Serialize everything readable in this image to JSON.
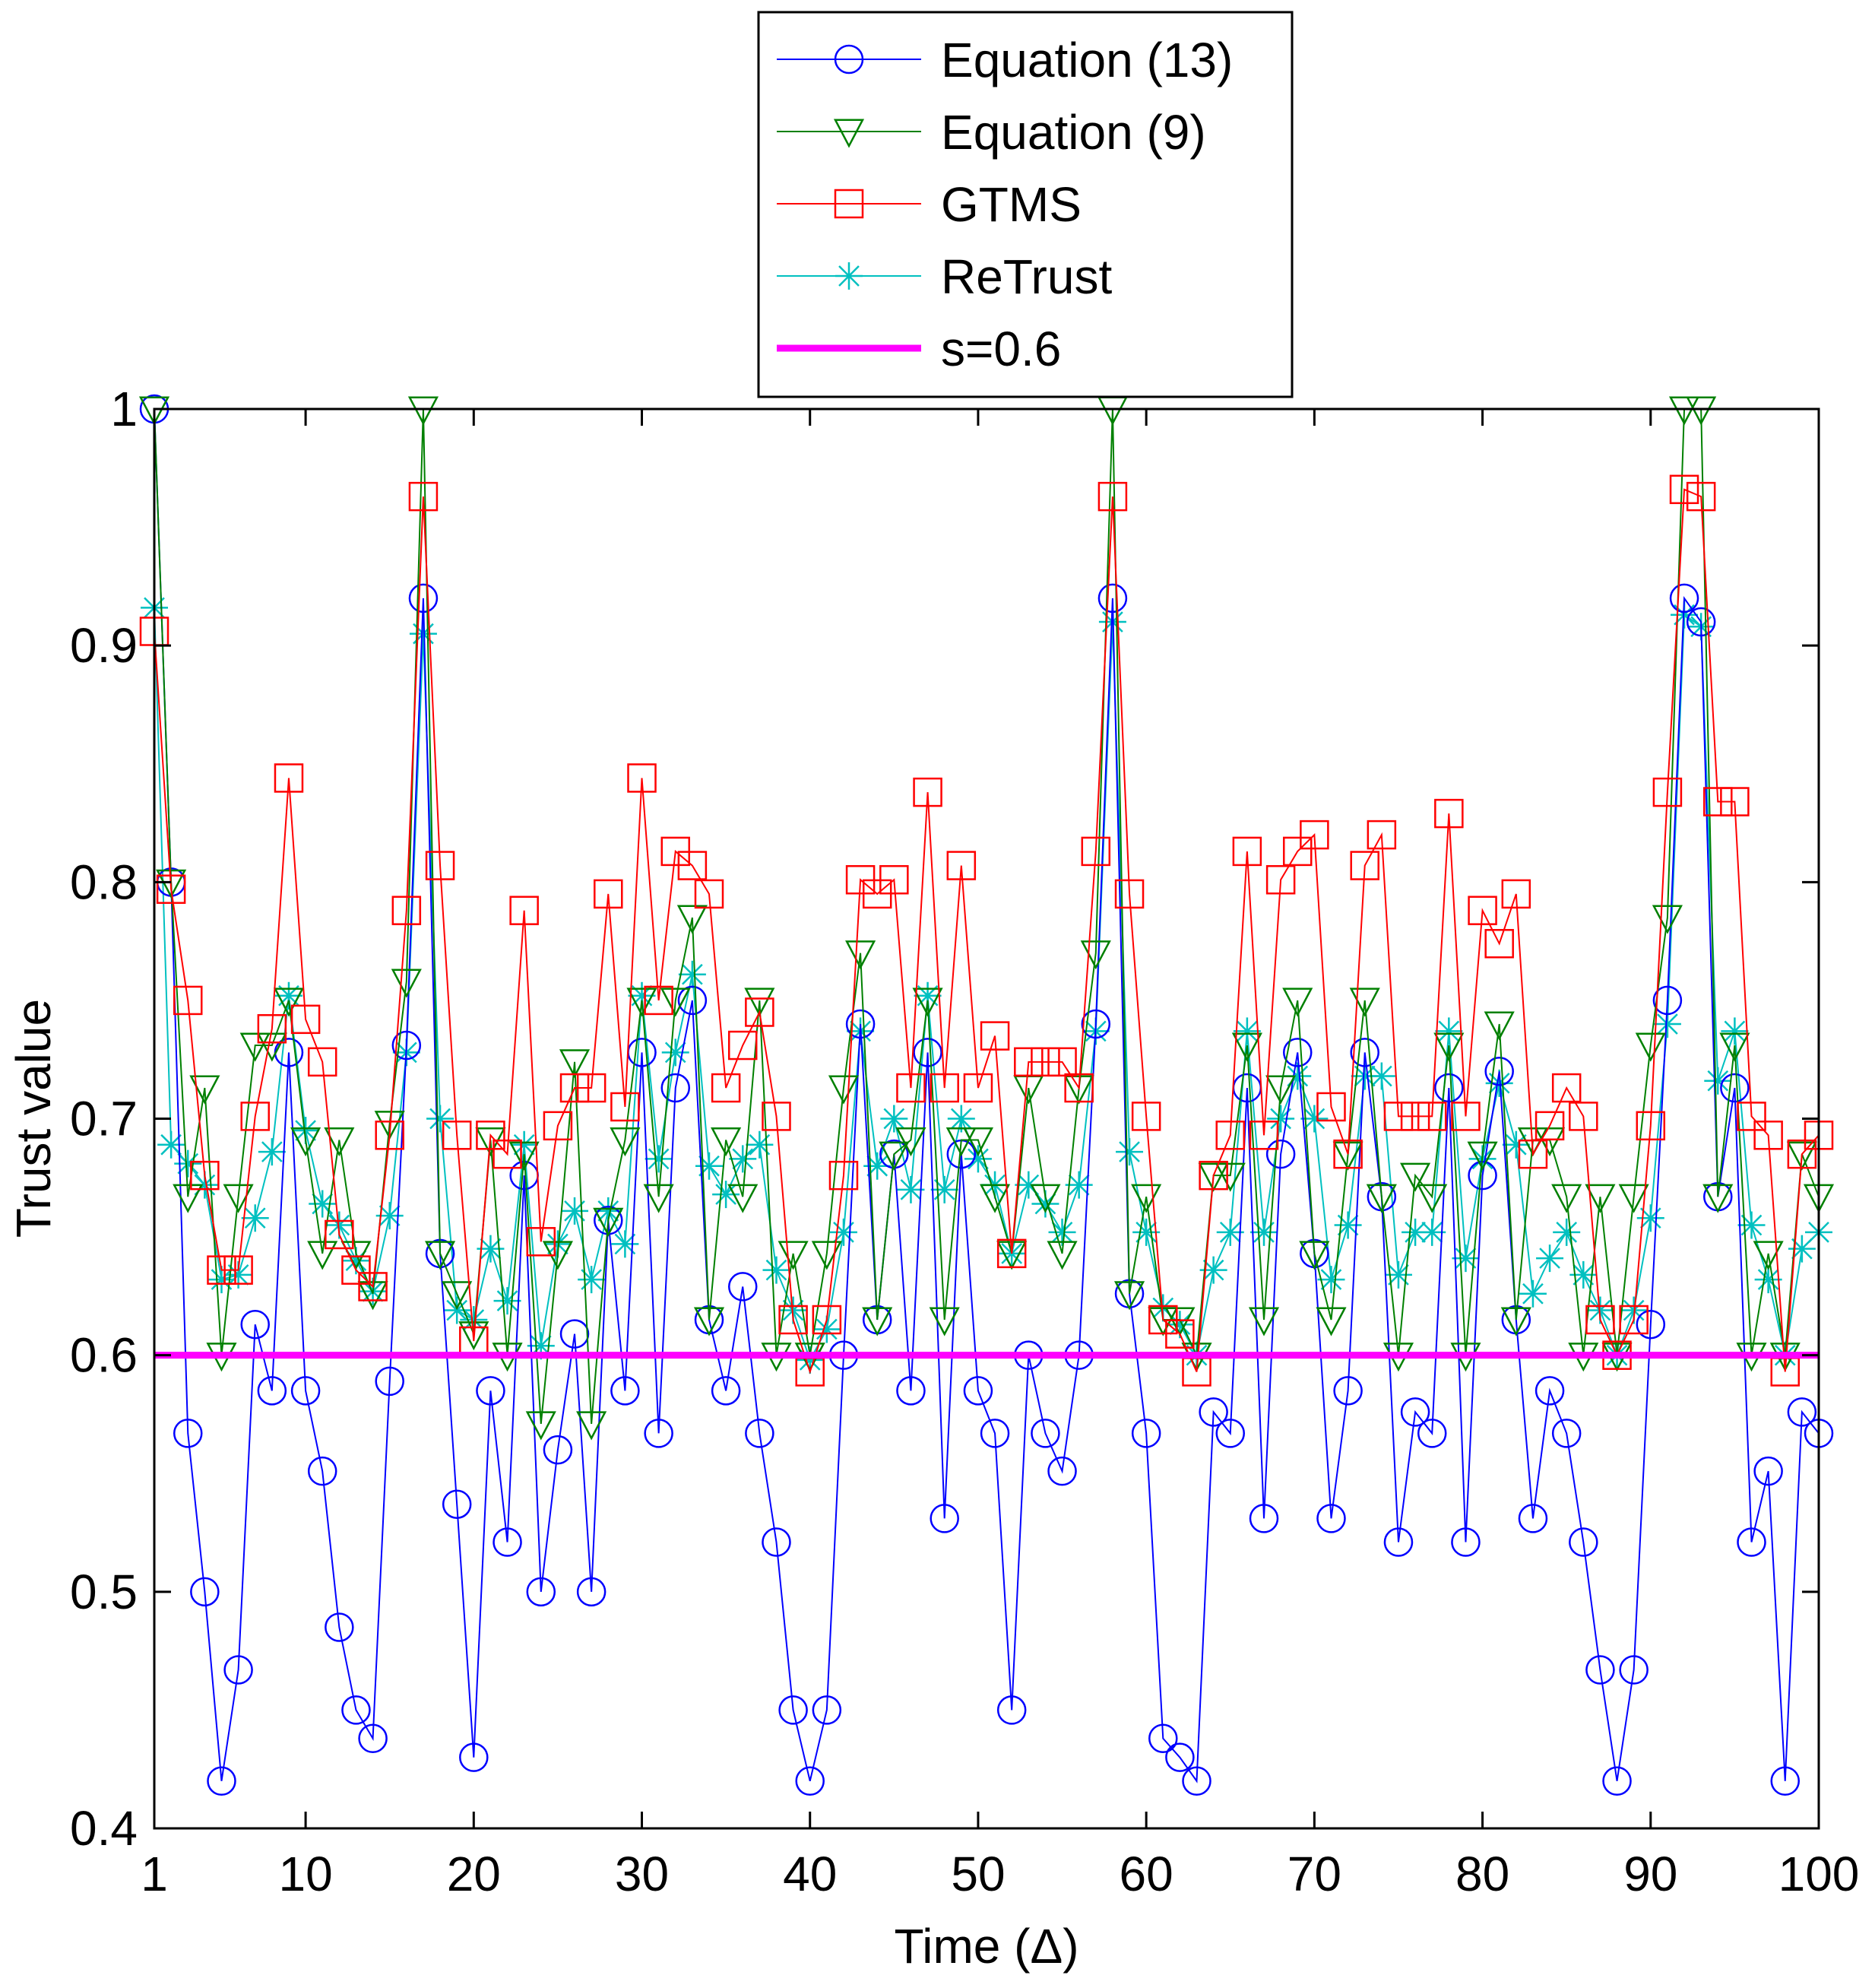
{
  "chart_data": {
    "type": "line",
    "xlabel": "Time (Δ)",
    "ylabel": "Trust value",
    "xlim": [
      1,
      100
    ],
    "ylim": [
      0.4,
      1.0
    ],
    "x_ticks": [
      1,
      10,
      20,
      30,
      40,
      50,
      60,
      70,
      80,
      90,
      100
    ],
    "x_tick_labels": [
      "1",
      "10",
      "20",
      "30",
      "40",
      "50",
      "60",
      "70",
      "80",
      "90",
      "100"
    ],
    "y_ticks": [
      0.4,
      0.5,
      0.6,
      0.7,
      0.8,
      0.9,
      1.0
    ],
    "y_tick_labels": [
      "0.4",
      "0.5",
      "0.6",
      "0.7",
      "0.8",
      "0.9",
      "1"
    ],
    "grid": false,
    "legend_position": "top-center, outside above plot",
    "series": [
      {
        "name": "Equation (13)",
        "color": "#0000ff",
        "marker": "circle",
        "values": [
          1.0,
          0.8,
          0.567,
          0.5,
          0.42,
          0.467,
          0.613,
          0.585,
          0.728,
          0.585,
          0.551,
          0.485,
          0.45,
          0.438,
          0.589,
          0.731,
          0.92,
          0.643,
          0.537,
          0.43,
          0.585,
          0.521,
          0.676,
          0.5,
          0.56,
          0.609,
          0.5,
          0.657,
          0.585,
          0.728,
          0.567,
          0.713,
          0.75,
          0.615,
          0.585,
          0.629,
          0.567,
          0.521,
          0.45,
          0.42,
          0.45,
          0.6,
          0.74,
          0.615,
          0.685,
          0.585,
          0.728,
          0.531,
          0.685,
          0.585,
          0.567,
          0.45,
          0.6,
          0.567,
          0.551,
          0.6,
          0.74,
          0.92,
          0.626,
          0.567,
          0.438,
          0.43,
          0.42,
          0.576,
          0.567,
          0.713,
          0.531,
          0.685,
          0.728,
          0.643,
          0.531,
          0.585,
          0.728,
          0.667,
          0.521,
          0.576,
          0.567,
          0.713,
          0.521,
          0.676,
          0.72,
          0.615,
          0.531,
          0.585,
          0.567,
          0.521,
          0.467,
          0.42,
          0.467,
          0.613,
          0.75,
          0.92,
          0.91,
          0.667,
          0.713,
          0.521,
          0.551,
          0.42,
          0.576,
          0.567
        ]
      },
      {
        "name": "Equation (9)",
        "color": "#008000",
        "marker": "triangle-down",
        "values": [
          1.0,
          0.8,
          0.667,
          0.713,
          0.6,
          0.667,
          0.731,
          0.731,
          0.75,
          0.691,
          0.643,
          0.691,
          0.643,
          0.626,
          0.698,
          0.758,
          1.0,
          0.643,
          0.626,
          0.609,
          0.691,
          0.6,
          0.685,
          0.571,
          0.643,
          0.724,
          0.571,
          0.657,
          0.691,
          0.75,
          0.667,
          0.75,
          0.785,
          0.615,
          0.691,
          0.667,
          0.75,
          0.6,
          0.643,
          0.6,
          0.643,
          0.713,
          0.77,
          0.615,
          0.685,
          0.691,
          0.75,
          0.615,
          0.691,
          0.691,
          0.667,
          0.643,
          0.713,
          0.667,
          0.643,
          0.713,
          0.77,
          1.0,
          0.626,
          0.667,
          0.615,
          0.615,
          0.6,
          0.676,
          0.676,
          0.731,
          0.615,
          0.713,
          0.75,
          0.643,
          0.615,
          0.685,
          0.75,
          0.667,
          0.6,
          0.676,
          0.667,
          0.731,
          0.6,
          0.685,
          0.74,
          0.615,
          0.691,
          0.691,
          0.667,
          0.6,
          0.667,
          0.6,
          0.667,
          0.731,
          0.785,
          1.0,
          1.0,
          0.667,
          0.731,
          0.6,
          0.643,
          0.6,
          0.685,
          0.667
        ]
      },
      {
        "name": "GTMS",
        "color": "#ff0000",
        "marker": "square",
        "values": [
          0.906,
          0.797,
          0.75,
          0.676,
          0.636,
          0.636,
          0.701,
          0.738,
          0.844,
          0.742,
          0.724,
          0.651,
          0.636,
          0.629,
          0.693,
          0.788,
          0.963,
          0.807,
          0.693,
          0.606,
          0.693,
          0.685,
          0.788,
          0.648,
          0.697,
          0.713,
          0.713,
          0.795,
          0.705,
          0.844,
          0.75,
          0.813,
          0.807,
          0.795,
          0.713,
          0.731,
          0.745,
          0.701,
          0.615,
          0.593,
          0.615,
          0.676,
          0.801,
          0.795,
          0.801,
          0.713,
          0.838,
          0.713,
          0.807,
          0.713,
          0.735,
          0.643,
          0.724,
          0.724,
          0.724,
          0.713,
          0.813,
          0.963,
          0.795,
          0.701,
          0.615,
          0.609,
          0.593,
          0.676,
          0.693,
          0.813,
          0.693,
          0.801,
          0.813,
          0.82,
          0.705,
          0.685,
          0.807,
          0.82,
          0.701,
          0.701,
          0.701,
          0.829,
          0.701,
          0.788,
          0.774,
          0.795,
          0.685,
          0.697,
          0.713,
          0.701,
          0.615,
          0.6,
          0.615,
          0.697,
          0.838,
          0.966,
          0.963,
          0.834,
          0.834,
          0.701,
          0.693,
          0.593,
          0.685,
          0.693
        ]
      },
      {
        "name": "ReTrust",
        "color": "#00c0c0",
        "marker": "asterisk",
        "values": [
          0.916,
          0.689,
          0.681,
          0.672,
          0.632,
          0.634,
          0.658,
          0.686,
          0.752,
          0.695,
          0.664,
          0.655,
          0.64,
          0.627,
          0.659,
          0.728,
          0.905,
          0.7,
          0.619,
          0.615,
          0.645,
          0.623,
          0.689,
          0.604,
          0.647,
          0.661,
          0.632,
          0.661,
          0.647,
          0.752,
          0.683,
          0.728,
          0.761,
          0.68,
          0.668,
          0.683,
          0.689,
          0.636,
          0.619,
          0.598,
          0.611,
          0.652,
          0.737,
          0.68,
          0.7,
          0.67,
          0.752,
          0.67,
          0.7,
          0.683,
          0.672,
          0.643,
          0.672,
          0.664,
          0.652,
          0.672,
          0.737,
          0.91,
          0.686,
          0.652,
          0.62,
          0.613,
          0.6,
          0.636,
          0.652,
          0.737,
          0.652,
          0.7,
          0.718,
          0.7,
          0.632,
          0.655,
          0.718,
          0.718,
          0.634,
          0.652,
          0.652,
          0.737,
          0.641,
          0.683,
          0.715,
          0.689,
          0.626,
          0.641,
          0.652,
          0.634,
          0.619,
          0.6,
          0.619,
          0.658,
          0.74,
          0.913,
          0.908,
          0.716,
          0.737,
          0.655,
          0.632,
          0.6,
          0.645,
          0.652
        ]
      },
      {
        "name": "s=0.6",
        "color": "#ff00ff",
        "marker": "none",
        "values": [
          0.6,
          0.6
        ]
      }
    ]
  }
}
